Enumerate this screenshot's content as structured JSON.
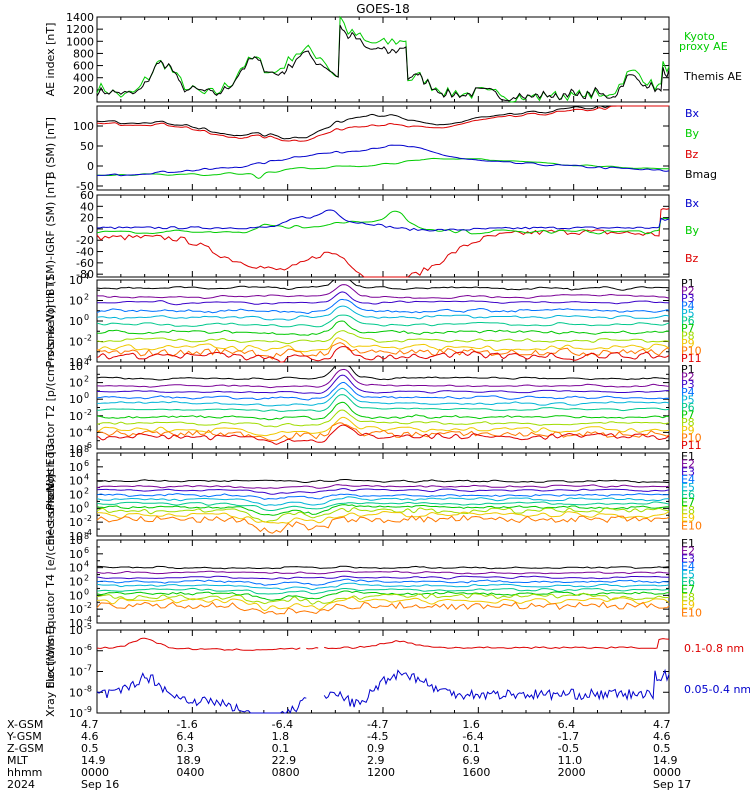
{
  "title": "GOES-18",
  "colors": {
    "black": "#000000",
    "red": "#dd0000",
    "blue": "#0000cc",
    "green": "#00cc00",
    "spectrum": [
      "#000000",
      "#7a0096",
      "#3a00c8",
      "#0070ff",
      "#00b4d8",
      "#00c88c",
      "#00c800",
      "#a0dc00",
      "#f0c800",
      "#ff7800",
      "#e00000",
      "#a00000"
    ]
  },
  "chart_data": [
    {
      "type": "line",
      "ylabel": "AE index [nT]",
      "ylim": [
        0,
        1400
      ],
      "yticks": [
        "200",
        "400",
        "600",
        "800",
        "1000",
        "1200",
        "1400"
      ],
      "series": [
        {
          "name": "Kyoto proxy AE",
          "color": "#00cc00"
        },
        {
          "name": "Themis AE",
          "color": "#000000"
        }
      ]
    },
    {
      "type": "line",
      "ylabel": "B (SM) [nT]",
      "ylim": [
        -60,
        150
      ],
      "yticks": [
        "-50",
        "0",
        "50",
        "100"
      ],
      "series": [
        {
          "name": "Bx",
          "color": "#0000cc"
        },
        {
          "name": "By",
          "color": "#00cc00"
        },
        {
          "name": "Bz",
          "color": "#dd0000"
        },
        {
          "name": "Bmag",
          "color": "#000000"
        }
      ]
    },
    {
      "type": "line",
      "ylabel": "B (SM)-IGRF (SM) [nT]",
      "ylim": [
        -85,
        60
      ],
      "yticks": [
        "-80",
        "-60",
        "-40",
        "-20",
        "0",
        "20",
        "40",
        "60"
      ],
      "series": [
        {
          "name": "Bx",
          "color": "#0000cc"
        },
        {
          "name": "By",
          "color": "#00cc00"
        },
        {
          "name": "Bz",
          "color": "#dd0000"
        }
      ]
    },
    {
      "type": "line",
      "ylabel": "Protons North T1",
      "yscale": "log",
      "yexp": [
        -4,
        4
      ],
      "series": [
        {
          "name": "P1"
        },
        {
          "name": "P2"
        },
        {
          "name": "P3"
        },
        {
          "name": "P4"
        },
        {
          "name": "P5"
        },
        {
          "name": "P6"
        },
        {
          "name": "P7"
        },
        {
          "name": "P8"
        },
        {
          "name": "P9"
        },
        {
          "name": "P10"
        },
        {
          "name": "P11"
        }
      ]
    },
    {
      "type": "line",
      "ylabel": "Protons Equator T2 [p/(cm²-s-sr-keV)]",
      "yscale": "log",
      "yexp": [
        -6,
        4
      ],
      "series": [
        {
          "name": "P1"
        },
        {
          "name": "P2"
        },
        {
          "name": "P3"
        },
        {
          "name": "P4"
        },
        {
          "name": "P5"
        },
        {
          "name": "P6"
        },
        {
          "name": "P7"
        },
        {
          "name": "P8"
        },
        {
          "name": "P9"
        },
        {
          "name": "P10"
        },
        {
          "name": "P11"
        }
      ]
    },
    {
      "type": "line",
      "ylabel": "Electrons North T3",
      "yscale": "log",
      "yexp": [
        -4,
        8
      ],
      "series": [
        {
          "name": "E1"
        },
        {
          "name": "E2"
        },
        {
          "name": "E3"
        },
        {
          "name": "E4"
        },
        {
          "name": "E5"
        },
        {
          "name": "E6"
        },
        {
          "name": "E7"
        },
        {
          "name": "E8"
        },
        {
          "name": "E9"
        },
        {
          "name": "E10"
        }
      ]
    },
    {
      "type": "line",
      "ylabel": "Electrons Equator T4 [e/(cm²-s-sr-keV)]",
      "yscale": "log",
      "yexp": [
        -4,
        8
      ],
      "series": [
        {
          "name": "E1"
        },
        {
          "name": "E2"
        },
        {
          "name": "E3"
        },
        {
          "name": "E4"
        },
        {
          "name": "E5"
        },
        {
          "name": "E6"
        },
        {
          "name": "E7"
        },
        {
          "name": "E8"
        },
        {
          "name": "E9"
        },
        {
          "name": "E10"
        }
      ]
    },
    {
      "type": "line",
      "ylabel": "Xray flux [W/m²]",
      "yscale": "log",
      "yexp": [
        -9,
        -5
      ],
      "series": [
        {
          "name": "0.1-0.8 nm",
          "color": "#dd0000"
        },
        {
          "name": "0.05-0.4 nm",
          "color": "#0000cc"
        }
      ]
    }
  ],
  "ephemeris": {
    "rows": [
      {
        "label": "X-GSM",
        "values": [
          "4.7",
          "-1.6",
          "-6.4",
          "-4.7",
          "1.6",
          "6.4",
          "4.7"
        ]
      },
      {
        "label": "Y-GSM",
        "values": [
          "4.6",
          "6.4",
          "1.8",
          "-4.5",
          "-6.4",
          "-1.7",
          "4.6"
        ]
      },
      {
        "label": "Z-GSM",
        "values": [
          "0.5",
          "0.3",
          "0.1",
          "0.9",
          "0.1",
          "-0.5",
          "0.5"
        ]
      },
      {
        "label": "MLT",
        "values": [
          "14.9",
          "18.9",
          "22.9",
          "2.9",
          "6.9",
          "11.0",
          "14.9"
        ]
      },
      {
        "label": "hhmm",
        "values": [
          "0000",
          "0400",
          "0800",
          "1200",
          "1600",
          "2000",
          "0000"
        ]
      },
      {
        "label": "2024",
        "values": [
          "Sep 16",
          "",
          "",
          "",
          "",
          "",
          "Sep 17"
        ]
      }
    ]
  }
}
